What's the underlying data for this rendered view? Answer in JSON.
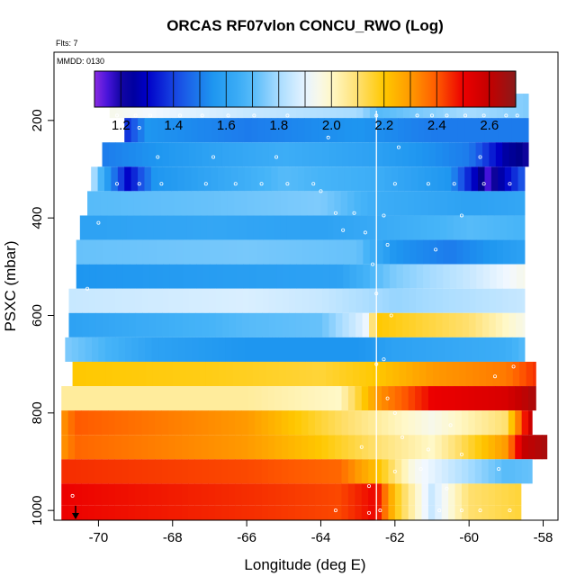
{
  "chart_data": {
    "type": "heatmap",
    "title": "ORCAS RF07vlon CONCU_RWO (Log)",
    "flts_label": "Flts: 7",
    "date_label": "MMDD: 0130",
    "xlabel": "Longitude (deg E)",
    "ylabel": "PSXC (mbar)",
    "xlim": [
      -71.2,
      -57.6
    ],
    "ylim": [
      1020,
      60
    ],
    "x_ticks": [
      -70,
      -68,
      -66,
      -64,
      -62,
      -60,
      -58
    ],
    "y_ticks": [
      200,
      400,
      600,
      800,
      1000
    ],
    "colorbar": {
      "range": [
        1.1,
        2.7
      ],
      "ticks": [
        1.2,
        1.4,
        1.6,
        1.8,
        2.0,
        2.2,
        2.4,
        2.6
      ]
    },
    "vertical_marker_lon": -62.5,
    "rows": [
      {
        "p": 170,
        "x0": -69.7,
        "x1": -58.4,
        "stops": [
          [
            -69.7,
            1.95
          ],
          [
            -66.0,
            1.85
          ],
          [
            -63.0,
            1.8
          ],
          [
            -62.4,
            1.7
          ],
          [
            -60.0,
            1.8
          ],
          [
            -58.4,
            1.75
          ]
        ]
      },
      {
        "p": 220,
        "x0": -69.3,
        "x1": -58.4,
        "stops": [
          [
            -69.3,
            1.35
          ],
          [
            -68.7,
            1.55
          ],
          [
            -66.0,
            1.5
          ],
          [
            -63.0,
            1.55
          ],
          [
            -61.0,
            1.5
          ],
          [
            -58.4,
            1.5
          ]
        ]
      },
      {
        "p": 270,
        "x0": -69.9,
        "x1": -58.4,
        "stops": [
          [
            -69.9,
            1.5
          ],
          [
            -67.0,
            1.6
          ],
          [
            -65.0,
            1.65
          ],
          [
            -62.6,
            1.6
          ],
          [
            -60.0,
            1.5
          ],
          [
            -59.0,
            1.25
          ],
          [
            -58.4,
            1.2
          ]
        ]
      },
      {
        "p": 320,
        "x0": -70.2,
        "x1": -58.5,
        "stops": [
          [
            -70.2,
            1.85
          ],
          [
            -69.8,
            1.6
          ],
          [
            -69.2,
            1.3
          ],
          [
            -68.5,
            1.55
          ],
          [
            -65.0,
            1.7
          ],
          [
            -62.5,
            1.65
          ],
          [
            -60.5,
            1.55
          ],
          [
            -59.5,
            1.15
          ],
          [
            -58.5,
            1.45
          ]
        ]
      },
      {
        "p": 370,
        "x0": -70.3,
        "x1": -58.5,
        "stops": [
          [
            -70.3,
            1.7
          ],
          [
            -67.0,
            1.72
          ],
          [
            -64.0,
            1.75
          ],
          [
            -62.5,
            1.65
          ],
          [
            -60.0,
            1.6
          ],
          [
            -58.5,
            1.62
          ]
        ]
      },
      {
        "p": 420,
        "x0": -70.5,
        "x1": -58.5,
        "stops": [
          [
            -70.5,
            1.6
          ],
          [
            -67.0,
            1.62
          ],
          [
            -64.0,
            1.6
          ],
          [
            -62.0,
            1.65
          ],
          [
            -60.0,
            1.7
          ],
          [
            -58.5,
            1.68
          ]
        ]
      },
      {
        "p": 470,
        "x0": -70.6,
        "x1": -58.5,
        "stops": [
          [
            -70.6,
            1.72
          ],
          [
            -66.0,
            1.74
          ],
          [
            -63.0,
            1.72
          ],
          [
            -62.0,
            1.55
          ],
          [
            -60.5,
            1.5
          ],
          [
            -58.5,
            1.6
          ]
        ]
      },
      {
        "p": 520,
        "x0": -70.6,
        "x1": -58.5,
        "stops": [
          [
            -70.6,
            1.55
          ],
          [
            -67.0,
            1.58
          ],
          [
            -63.5,
            1.6
          ],
          [
            -62.0,
            1.75
          ],
          [
            -60.0,
            1.85
          ],
          [
            -58.5,
            1.95
          ]
        ]
      },
      {
        "p": 570,
        "x0": -70.8,
        "x1": -58.5,
        "stops": [
          [
            -70.8,
            1.85
          ],
          [
            -66.0,
            1.88
          ],
          [
            -64.0,
            1.85
          ],
          [
            -62.0,
            1.78
          ],
          [
            -60.0,
            1.82
          ],
          [
            -58.5,
            1.85
          ]
        ]
      },
      {
        "p": 620,
        "x0": -70.8,
        "x1": -58.5,
        "stops": [
          [
            -70.8,
            1.6
          ],
          [
            -66.0,
            1.7
          ],
          [
            -64.0,
            1.72
          ],
          [
            -62.8,
            1.9
          ],
          [
            -62.5,
            2.2
          ],
          [
            -60.0,
            2.1
          ],
          [
            -58.5,
            1.95
          ]
        ]
      },
      {
        "p": 670,
        "x0": -70.9,
        "x1": -58.5,
        "stops": [
          [
            -70.9,
            1.75
          ],
          [
            -68.5,
            1.6
          ],
          [
            -66.0,
            1.55
          ],
          [
            -63.0,
            1.55
          ],
          [
            -62.0,
            1.6
          ],
          [
            -59.0,
            1.65
          ],
          [
            -58.5,
            1.7
          ]
        ]
      },
      {
        "p": 720,
        "x0": -70.7,
        "x1": -58.2,
        "stops": [
          [
            -70.7,
            2.2
          ],
          [
            -67.0,
            2.18
          ],
          [
            -64.0,
            2.15
          ],
          [
            -62.5,
            2.2
          ],
          [
            -61.0,
            2.3
          ],
          [
            -59.0,
            2.35
          ],
          [
            -58.2,
            2.45
          ]
        ]
      },
      {
        "p": 770,
        "x0": -71.0,
        "x1": -58.2,
        "stops": [
          [
            -71.0,
            2.05
          ],
          [
            -66.0,
            2.05
          ],
          [
            -63.5,
            2.0
          ],
          [
            -62.5,
            2.3
          ],
          [
            -61.0,
            2.5
          ],
          [
            -59.0,
            2.55
          ],
          [
            -58.2,
            2.65
          ]
        ]
      },
      {
        "p": 820,
        "x0": -71.0,
        "x1": -58.3,
        "stops": [
          [
            -71.0,
            2.3
          ],
          [
            -70.6,
            2.4
          ],
          [
            -66.0,
            2.3
          ],
          [
            -64.0,
            2.15
          ],
          [
            -62.5,
            2.05
          ],
          [
            -61.0,
            1.95
          ],
          [
            -59.0,
            2.1
          ],
          [
            -58.3,
            2.62
          ]
        ]
      },
      {
        "p": 870,
        "x0": -71.0,
        "x1": -57.9,
        "stops": [
          [
            -71.0,
            2.3
          ],
          [
            -70.6,
            2.38
          ],
          [
            -66.0,
            2.3
          ],
          [
            -64.0,
            2.2
          ],
          [
            -62.5,
            2.1
          ],
          [
            -61.0,
            2.0
          ],
          [
            -59.0,
            2.3
          ],
          [
            -58.5,
            2.6
          ],
          [
            -57.9,
            2.65
          ]
        ]
      },
      {
        "p": 920,
        "x0": -71.0,
        "x1": -58.3,
        "stops": [
          [
            -71.0,
            2.45
          ],
          [
            -66.0,
            2.42
          ],
          [
            -63.5,
            2.38
          ],
          [
            -62.4,
            2.2
          ],
          [
            -61.5,
            1.95
          ],
          [
            -60.0,
            1.8
          ],
          [
            -59.0,
            1.7
          ],
          [
            -58.3,
            1.72
          ]
        ]
      },
      {
        "p": 970,
        "x0": -71.0,
        "x1": -58.6,
        "stops": [
          [
            -71.0,
            2.5
          ],
          [
            -66.0,
            2.45
          ],
          [
            -63.5,
            2.42
          ],
          [
            -62.5,
            2.5
          ],
          [
            -62.0,
            2.2
          ],
          [
            -61.0,
            1.85
          ],
          [
            -60.0,
            2.1
          ],
          [
            -58.6,
            2.15
          ]
        ]
      },
      {
        "p": 1010,
        "x0": -71.0,
        "x1": -58.6,
        "stops": [
          [
            -71.0,
            2.5
          ],
          [
            -66.0,
            2.45
          ],
          [
            -63.5,
            2.42
          ],
          [
            -62.5,
            2.5
          ],
          [
            -62.0,
            2.2
          ],
          [
            -61.0,
            1.85
          ],
          [
            -60.0,
            2.1
          ],
          [
            -58.6,
            2.15
          ]
        ]
      }
    ],
    "sample_points": [
      {
        "lon": -69.5,
        "p": 190
      },
      {
        "lon": -69.0,
        "p": 190
      },
      {
        "lon": -68.6,
        "p": 190
      },
      {
        "lon": -67.8,
        "p": 190
      },
      {
        "lon": -67.2,
        "p": 190
      },
      {
        "lon": -66.5,
        "p": 190
      },
      {
        "lon": -65.8,
        "p": 190
      },
      {
        "lon": -64.9,
        "p": 190
      },
      {
        "lon": -62.5,
        "p": 190
      },
      {
        "lon": -61.4,
        "p": 190
      },
      {
        "lon": -61.0,
        "p": 190
      },
      {
        "lon": -60.6,
        "p": 190
      },
      {
        "lon": -60.1,
        "p": 190
      },
      {
        "lon": -59.6,
        "p": 190
      },
      {
        "lon": -59.0,
        "p": 190
      },
      {
        "lon": -58.7,
        "p": 190
      },
      {
        "lon": -68.9,
        "p": 215
      },
      {
        "lon": -63.8,
        "p": 235
      },
      {
        "lon": -61.9,
        "p": 255
      },
      {
        "lon": -70.0,
        "p": 275
      },
      {
        "lon": -68.4,
        "p": 275
      },
      {
        "lon": -66.9,
        "p": 275
      },
      {
        "lon": -65.2,
        "p": 275
      },
      {
        "lon": -59.7,
        "p": 275
      },
      {
        "lon": -69.5,
        "p": 330
      },
      {
        "lon": -68.9,
        "p": 330
      },
      {
        "lon": -68.3,
        "p": 330
      },
      {
        "lon": -67.1,
        "p": 330
      },
      {
        "lon": -66.3,
        "p": 330
      },
      {
        "lon": -65.6,
        "p": 330
      },
      {
        "lon": -64.9,
        "p": 330
      },
      {
        "lon": -64.2,
        "p": 330
      },
      {
        "lon": -62.0,
        "p": 330
      },
      {
        "lon": -61.1,
        "p": 330
      },
      {
        "lon": -60.4,
        "p": 330
      },
      {
        "lon": -59.6,
        "p": 330
      },
      {
        "lon": -58.9,
        "p": 330
      },
      {
        "lon": -64.0,
        "p": 345
      },
      {
        "lon": -63.6,
        "p": 390
      },
      {
        "lon": -63.1,
        "p": 390
      },
      {
        "lon": -62.3,
        "p": 395
      },
      {
        "lon": -60.2,
        "p": 395
      },
      {
        "lon": -70.0,
        "p": 410
      },
      {
        "lon": -63.4,
        "p": 425
      },
      {
        "lon": -62.8,
        "p": 430
      },
      {
        "lon": -62.2,
        "p": 455
      },
      {
        "lon": -60.9,
        "p": 465
      },
      {
        "lon": -62.6,
        "p": 495
      },
      {
        "lon": -70.3,
        "p": 545
      },
      {
        "lon": -62.5,
        "p": 555
      },
      {
        "lon": -62.1,
        "p": 600
      },
      {
        "lon": -62.3,
        "p": 690
      },
      {
        "lon": -62.5,
        "p": 700
      },
      {
        "lon": -58.8,
        "p": 705
      },
      {
        "lon": -59.3,
        "p": 725
      },
      {
        "lon": -62.2,
        "p": 770
      },
      {
        "lon": -62.0,
        "p": 800
      },
      {
        "lon": -60.5,
        "p": 825
      },
      {
        "lon": -61.8,
        "p": 850
      },
      {
        "lon": -62.9,
        "p": 870
      },
      {
        "lon": -61.1,
        "p": 875
      },
      {
        "lon": -60.2,
        "p": 885
      },
      {
        "lon": -61.3,
        "p": 915
      },
      {
        "lon": -59.2,
        "p": 915
      },
      {
        "lon": -62.0,
        "p": 920
      },
      {
        "lon": -62.7,
        "p": 950
      },
      {
        "lon": -60.6,
        "p": 955
      },
      {
        "lon": -70.7,
        "p": 970
      },
      {
        "lon": -63.6,
        "p": 1000
      },
      {
        "lon": -62.4,
        "p": 1000
      },
      {
        "lon": -60.8,
        "p": 1000
      },
      {
        "lon": -60.2,
        "p": 1000
      },
      {
        "lon": -59.7,
        "p": 1000
      },
      {
        "lon": -58.9,
        "p": 1000
      },
      {
        "lon": -62.7,
        "p": 1005
      }
    ]
  }
}
